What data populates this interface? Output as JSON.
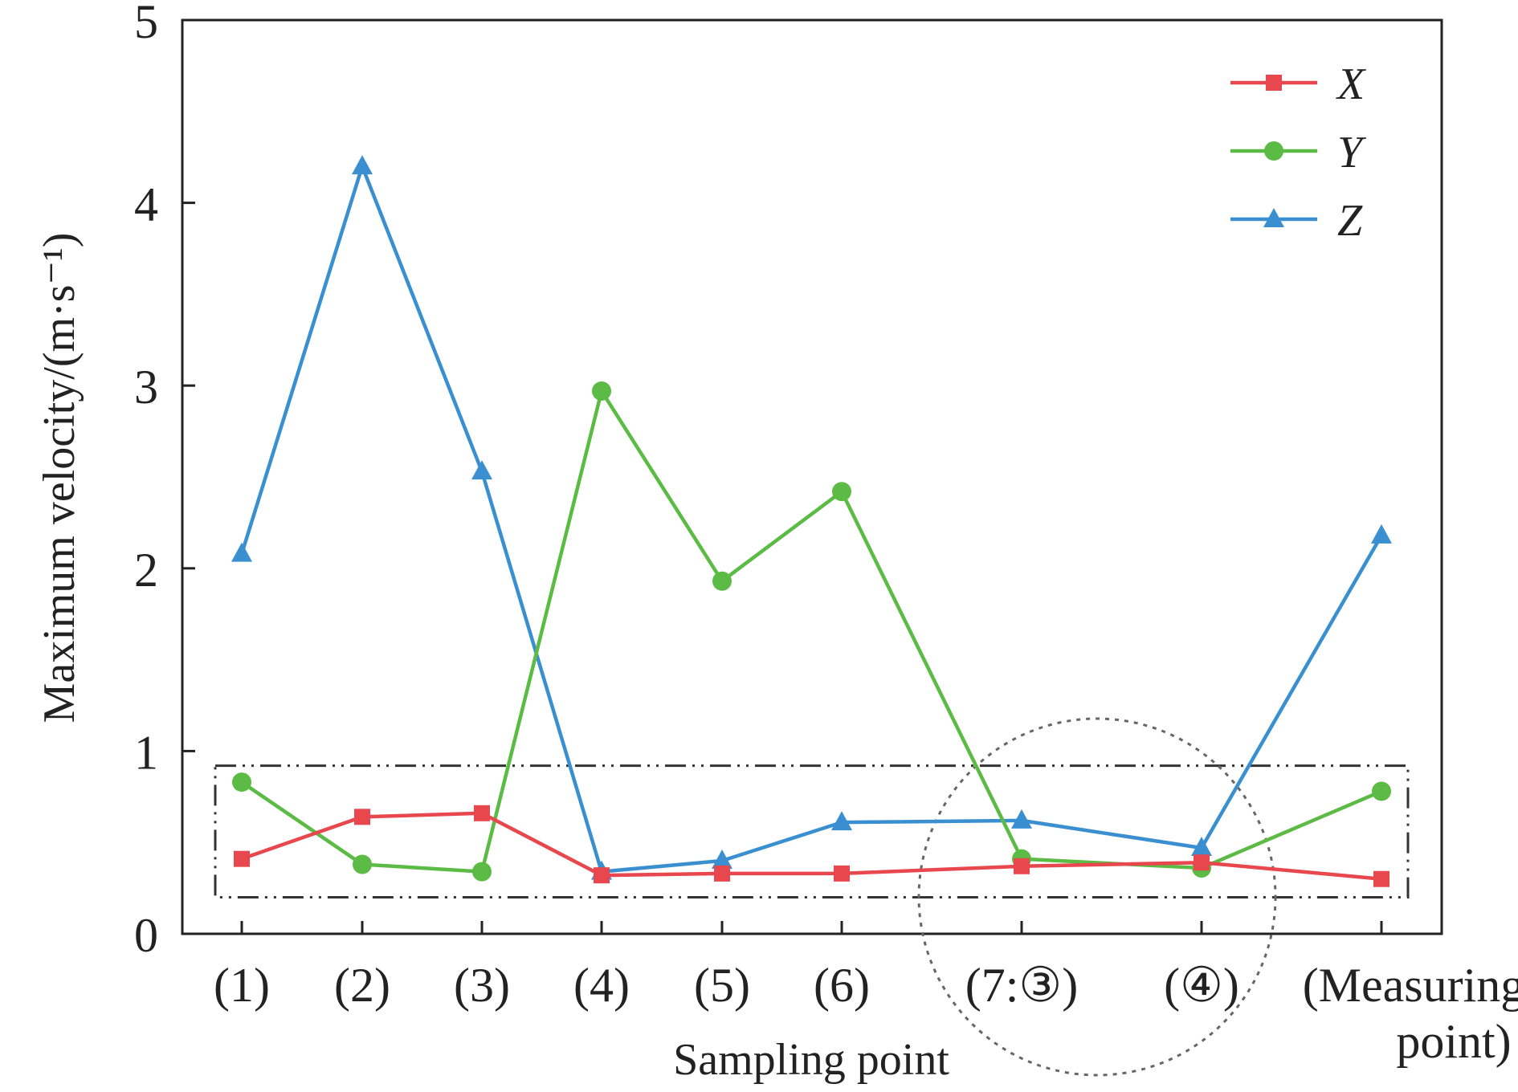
{
  "chart_data": {
    "type": "line",
    "title": "",
    "xlabel": "Sampling point",
    "ylabel": "Maximum velocity/(m·s⁻¹)",
    "categories": [
      "(1)",
      "(2)",
      "(3)",
      "(4)",
      "(5)",
      "(6)",
      "(7:③)",
      "(④)",
      "(Measuring point)"
    ],
    "ylim": [
      0,
      5
    ],
    "yticks": [
      "0",
      "1",
      "2",
      "3",
      "4",
      "5"
    ],
    "grid": false,
    "legend_position": "top-right",
    "series": [
      {
        "name": "X",
        "color": "#e8474d",
        "marker": "square",
        "values": [
          0.41,
          0.64,
          0.66,
          0.32,
          0.33,
          0.33,
          0.37,
          0.39,
          0.3
        ]
      },
      {
        "name": "Y",
        "color": "#5bbb44",
        "marker": "circle",
        "values": [
          0.83,
          0.38,
          0.34,
          2.97,
          1.93,
          2.42,
          0.41,
          0.36,
          0.78
        ]
      },
      {
        "name": "Z",
        "color": "#3a8fd0",
        "marker": "triangle",
        "values": [
          2.08,
          4.2,
          2.53,
          0.34,
          0.4,
          0.61,
          0.62,
          0.47,
          2.18
        ]
      }
    ],
    "annotations": [
      {
        "type": "dash-dot rectangle",
        "x_range": [
          "(1)",
          "(Measuring point)"
        ],
        "y_range": [
          0.2,
          0.92
        ]
      },
      {
        "type": "dotted circle",
        "around": [
          "(7:③)",
          "(④)"
        ]
      }
    ]
  }
}
